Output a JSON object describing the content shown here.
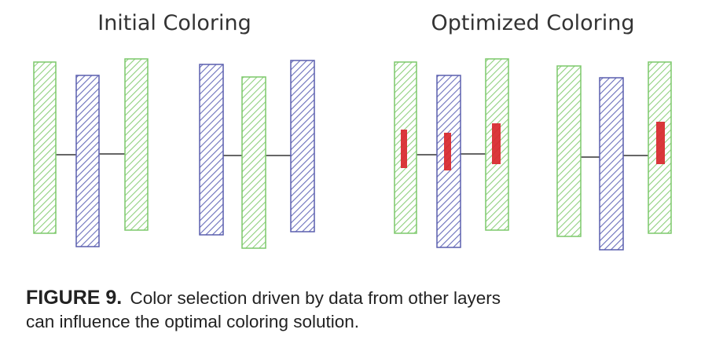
{
  "panels": [
    {
      "title": "Initial Coloring"
    },
    {
      "title": "Optimized Coloring"
    }
  ],
  "caption": {
    "label": "FIGURE 9.",
    "line1": "Color selection driven by data from other layers",
    "line2": "can influence the optimal coloring solution."
  },
  "colors": {
    "green": "#7cc86a",
    "blue": "#5a5fae",
    "red": "#d8262b",
    "connector": "#666666"
  },
  "diagram": {
    "initial_groups": [
      [
        "green",
        "blue",
        "green"
      ],
      [
        "blue",
        "green",
        "blue"
      ]
    ],
    "optimized_groups": [
      [
        "green",
        "blue",
        "green"
      ],
      [
        "green",
        "blue",
        "green"
      ]
    ],
    "optimized_markers": "red blocks on shapes in optimized coloring"
  }
}
